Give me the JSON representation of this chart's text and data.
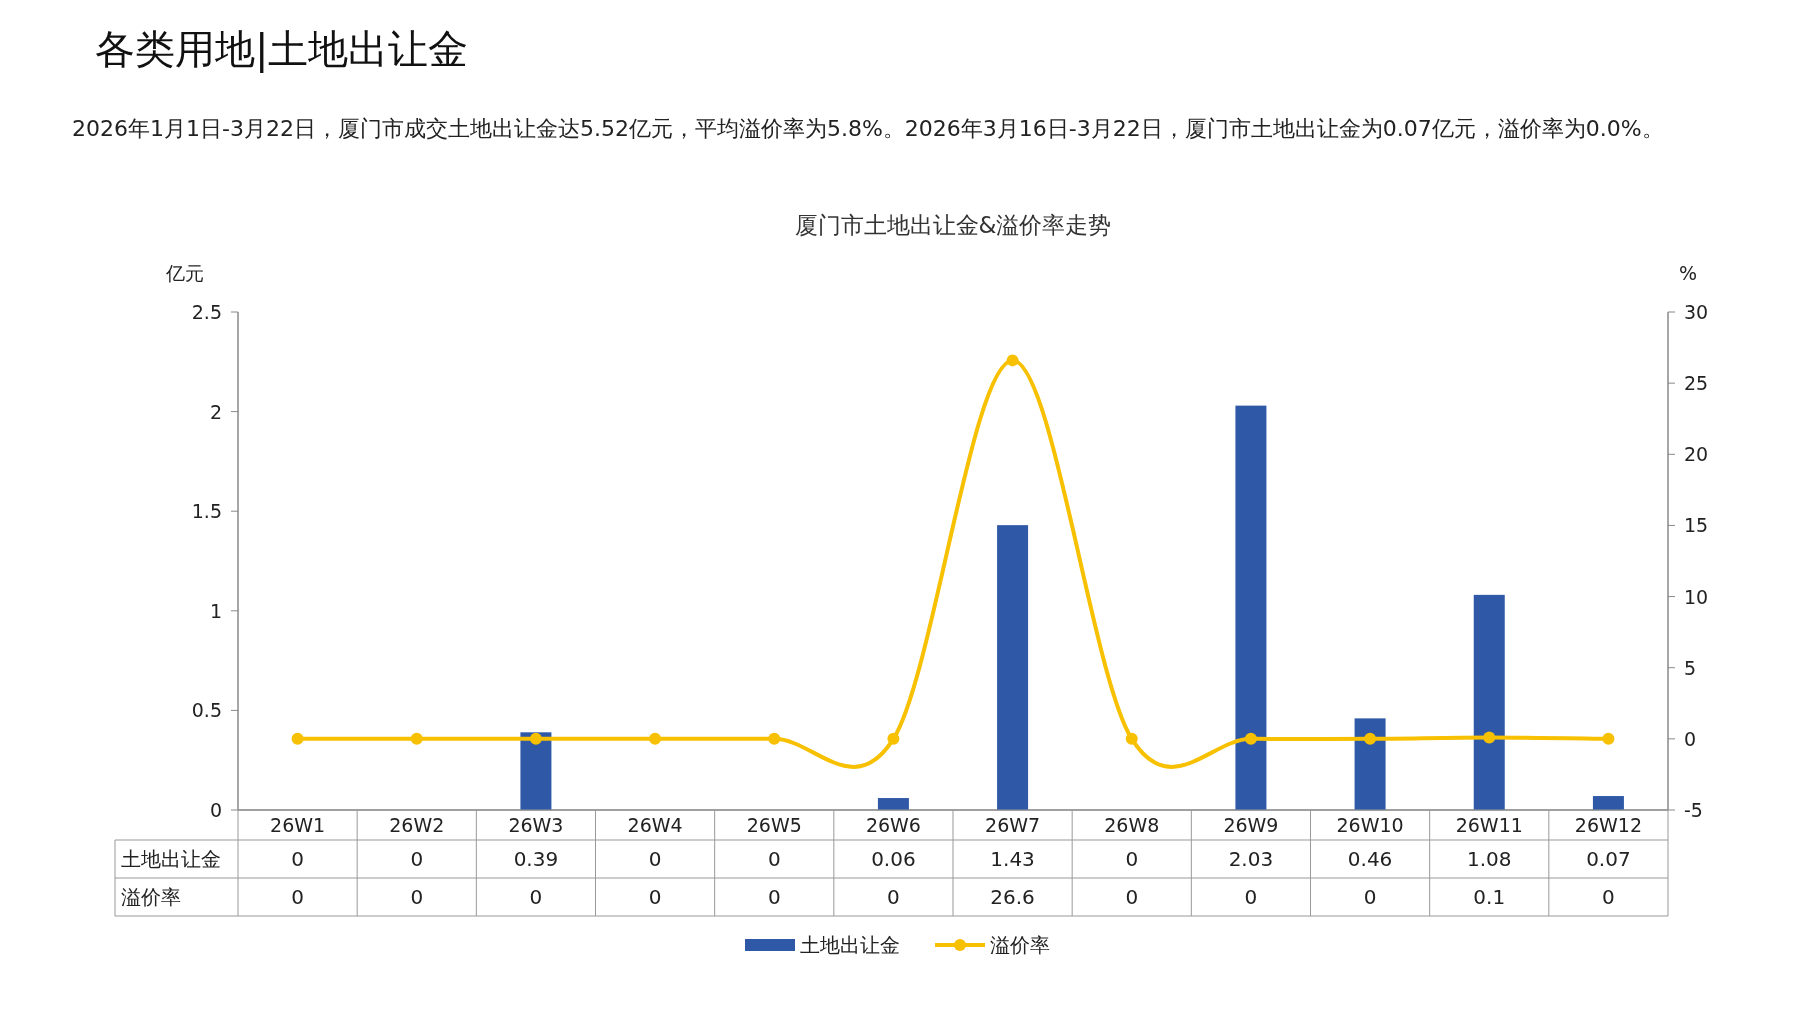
{
  "chart_data": {
    "type": "bar",
    "title": "厦门市土地出让金&溢价率走势",
    "annotations": [
      "各类用地|土地出让金",
      "2026年1月1日-3月22日，厦门市成交土地出让金达5.52亿元，平均溢价率为5.8%。2026年3月16日-3月22日，厦门市土地出让金为0.07亿元，溢价率为0.0%。"
    ],
    "ylabel": "亿元",
    "y2label": "%",
    "categories": [
      "26W1",
      "26W2",
      "26W3",
      "26W4",
      "26W5",
      "26W6",
      "26W7",
      "26W8",
      "26W9",
      "26W10",
      "26W11",
      "26W12"
    ],
    "series": [
      {
        "name": "土地出让金",
        "color": "#2f59a6",
        "values": [
          0,
          0,
          0.39,
          0,
          0,
          0.06,
          1.43,
          0,
          2.03,
          0.46,
          1.08,
          0.07
        ]
      },
      {
        "name": "溢价率",
        "type": "line",
        "axis": "y2",
        "color": "#f7c000",
        "values": [
          0,
          0,
          0,
          0,
          0,
          0,
          26.6,
          0,
          0,
          0,
          0.1,
          0
        ]
      }
    ],
    "ylim": [
      0,
      2.5
    ],
    "yticks": [
      0,
      0.5,
      1,
      1.5,
      2,
      2.5
    ],
    "y2lim": [
      -5,
      30
    ],
    "y2ticks": [
      -5,
      0,
      5,
      10,
      15,
      20,
      25,
      30
    ],
    "data_labels": true,
    "legend": "bottom",
    "marker": "circle",
    "line_style": "solid",
    "grid": false
  }
}
